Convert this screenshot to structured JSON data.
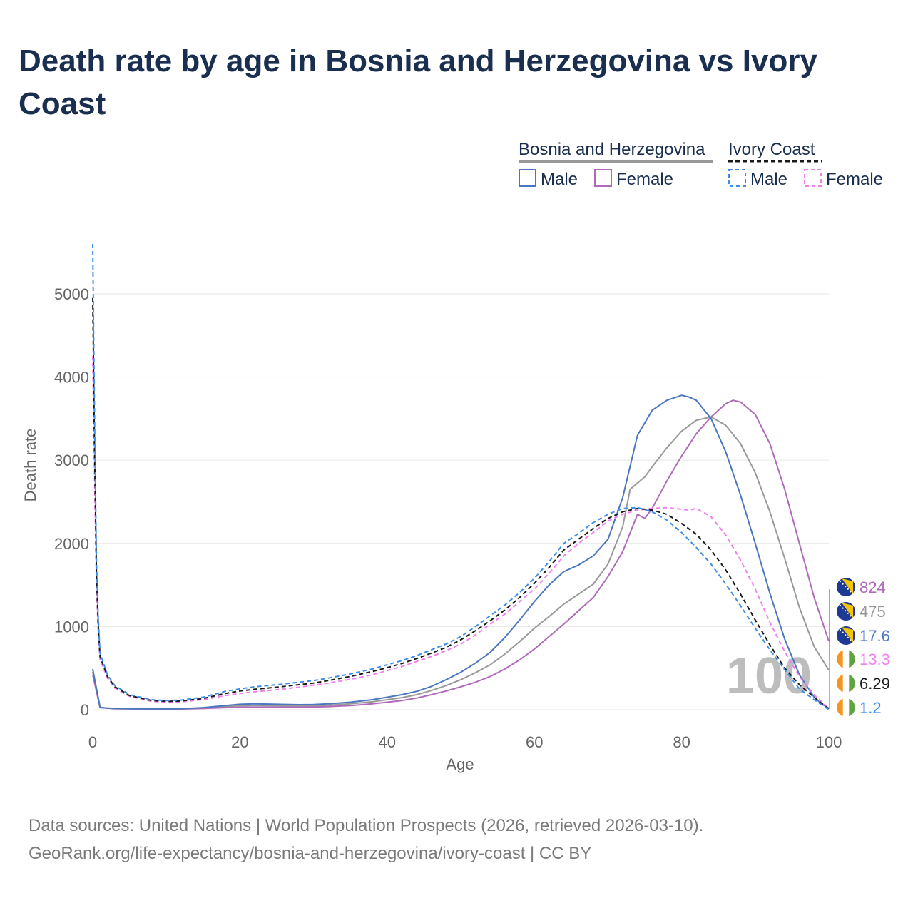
{
  "title": "Death rate by age in Bosnia and Herzegovina vs Ivory Coast",
  "legend": {
    "group1": "Bosnia and Herzegovina",
    "group2": "Ivory Coast",
    "male": "Male",
    "female": "Female"
  },
  "year_watermark": "100",
  "footer": {
    "line1": "Data sources: United Nations | World Population Prospects (2026, retrieved 2026-03-10).",
    "line2": "GeoRank.org/life-expectancy/bosnia-and-herzegovina/ivory-coast | CC BY"
  },
  "colors": {
    "bih_male": "#4a77bf",
    "bih_female": "#b06aba",
    "bih_total": "#999999",
    "ci_male": "#3d8eeb",
    "ci_female": "#f27ff0",
    "ci_total": "#1a1a1a"
  },
  "chart_data": {
    "type": "line",
    "xlabel": "Age",
    "ylabel": "Death rate",
    "xlim": [
      0,
      100
    ],
    "ylim": [
      0,
      5600
    ],
    "xticks": [
      0,
      20,
      40,
      60,
      80,
      100
    ],
    "yticks": [
      0,
      1000,
      2000,
      3000,
      4000,
      5000
    ],
    "series": [
      {
        "id": "bih_male",
        "name": "Bosnia and Herzegovina Male",
        "dash": false,
        "end_value": "17.6",
        "x": [
          0,
          1,
          2,
          3,
          5,
          8,
          10,
          12,
          15,
          18,
          20,
          22,
          25,
          28,
          30,
          32,
          35,
          38,
          40,
          42,
          44,
          46,
          48,
          50,
          52,
          54,
          56,
          58,
          60,
          62,
          64,
          66,
          68,
          70,
          72,
          74,
          76,
          78,
          80,
          81,
          82,
          84,
          86,
          88,
          90,
          92,
          94,
          96,
          98,
          99,
          100
        ],
        "y": [
          490,
          28,
          20,
          15,
          12,
          10,
          10,
          12,
          25,
          50,
          65,
          70,
          65,
          60,
          62,
          70,
          90,
          120,
          150,
          180,
          220,
          280,
          360,
          450,
          560,
          690,
          870,
          1080,
          1300,
          1500,
          1660,
          1740,
          1850,
          2050,
          2550,
          3300,
          3600,
          3720,
          3780,
          3760,
          3720,
          3500,
          3100,
          2580,
          2000,
          1400,
          850,
          420,
          150,
          70,
          17.6
        ]
      },
      {
        "id": "bih_female",
        "name": "Bosnia and Herzegovina Female",
        "dash": false,
        "end_value": "824",
        "x": [
          0,
          1,
          2,
          3,
          5,
          8,
          10,
          12,
          15,
          18,
          20,
          22,
          25,
          28,
          30,
          32,
          35,
          38,
          40,
          42,
          44,
          46,
          48,
          50,
          52,
          54,
          56,
          58,
          60,
          62,
          64,
          66,
          68,
          70,
          72,
          74,
          75,
          76,
          78,
          80,
          82,
          84,
          86,
          87,
          88,
          90,
          92,
          94,
          96,
          98,
          100
        ],
        "y": [
          420,
          25,
          18,
          12,
          10,
          8,
          8,
          9,
          15,
          25,
          30,
          30,
          30,
          30,
          32,
          38,
          50,
          70,
          90,
          110,
          140,
          180,
          225,
          275,
          330,
          400,
          490,
          600,
          730,
          880,
          1030,
          1190,
          1350,
          1600,
          1900,
          2350,
          2300,
          2420,
          2750,
          3050,
          3320,
          3520,
          3680,
          3720,
          3700,
          3550,
          3200,
          2650,
          2000,
          1350,
          824
        ]
      },
      {
        "id": "bih_total",
        "name": "Bosnia and Herzegovina Total",
        "dash": false,
        "end_value": "475",
        "x": [
          0,
          1,
          2,
          3,
          5,
          8,
          10,
          12,
          15,
          18,
          20,
          22,
          25,
          28,
          30,
          32,
          35,
          38,
          40,
          42,
          44,
          46,
          48,
          50,
          52,
          54,
          56,
          58,
          60,
          62,
          64,
          66,
          68,
          70,
          72,
          73,
          75,
          76,
          78,
          80,
          82,
          84,
          86,
          88,
          90,
          92,
          94,
          96,
          98,
          100
        ],
        "y": [
          455,
          27,
          19,
          13,
          11,
          9,
          9,
          10,
          20,
          38,
          48,
          50,
          48,
          45,
          47,
          54,
          70,
          95,
          120,
          145,
          180,
          230,
          290,
          360,
          445,
          540,
          670,
          820,
          980,
          1120,
          1270,
          1390,
          1510,
          1750,
          2200,
          2650,
          2800,
          2920,
          3150,
          3350,
          3480,
          3520,
          3420,
          3200,
          2850,
          2380,
          1820,
          1230,
          760,
          475
        ]
      },
      {
        "id": "ci_male",
        "name": "Ivory Coast Male",
        "dash": true,
        "end_value": "1.2",
        "x": [
          0,
          0.25,
          0.5,
          0.75,
          1,
          2,
          3,
          5,
          8,
          10,
          12,
          15,
          18,
          20,
          22,
          25,
          28,
          30,
          32,
          35,
          38,
          40,
          42,
          44,
          46,
          48,
          50,
          52,
          54,
          56,
          58,
          60,
          62,
          64,
          66,
          68,
          70,
          72,
          74,
          76,
          78,
          80,
          82,
          84,
          86,
          88,
          90,
          92,
          94,
          96,
          98,
          100
        ],
        "y": [
          5600,
          3500,
          1800,
          1100,
          680,
          420,
          290,
          180,
          120,
          110,
          115,
          150,
          220,
          250,
          275,
          300,
          330,
          350,
          380,
          430,
          490,
          540,
          590,
          650,
          720,
          790,
          880,
          1000,
          1130,
          1260,
          1410,
          1580,
          1780,
          2000,
          2120,
          2250,
          2350,
          2420,
          2430,
          2380,
          2280,
          2130,
          1950,
          1750,
          1510,
          1250,
          980,
          720,
          480,
          250,
          120,
          1.2
        ]
      },
      {
        "id": "ci_female",
        "name": "Ivory Coast Female",
        "dash": true,
        "end_value": "13.3",
        "x": [
          0,
          0.25,
          0.5,
          0.75,
          1,
          2,
          3,
          5,
          8,
          10,
          12,
          15,
          18,
          20,
          22,
          25,
          28,
          30,
          32,
          35,
          38,
          40,
          42,
          44,
          46,
          48,
          50,
          52,
          54,
          56,
          58,
          60,
          62,
          64,
          66,
          68,
          70,
          72,
          74,
          76,
          78,
          80,
          81,
          82,
          84,
          86,
          88,
          90,
          92,
          94,
          96,
          98,
          100
        ],
        "y": [
          4250,
          2800,
          1500,
          950,
          600,
          380,
          260,
          160,
          100,
          90,
          95,
          120,
          170,
          195,
          215,
          240,
          270,
          295,
          320,
          365,
          420,
          470,
          520,
          580,
          640,
          710,
          790,
          900,
          1030,
          1150,
          1300,
          1450,
          1640,
          1850,
          2000,
          2130,
          2270,
          2350,
          2400,
          2420,
          2430,
          2410,
          2400,
          2420,
          2320,
          2100,
          1800,
          1450,
          1050,
          700,
          400,
          180,
          13.3
        ]
      },
      {
        "id": "ci_total",
        "name": "Ivory Coast Total",
        "dash": true,
        "end_value": "6.29",
        "x": [
          0,
          0.25,
          0.5,
          0.75,
          1,
          2,
          3,
          5,
          8,
          10,
          12,
          15,
          18,
          20,
          22,
          25,
          28,
          30,
          32,
          35,
          38,
          40,
          42,
          44,
          46,
          48,
          50,
          52,
          54,
          56,
          58,
          60,
          62,
          64,
          66,
          68,
          70,
          72,
          74,
          76,
          78,
          80,
          82,
          84,
          86,
          88,
          90,
          92,
          94,
          96,
          98,
          100
        ],
        "y": [
          4950,
          3100,
          1650,
          1020,
          640,
          400,
          275,
          170,
          110,
          100,
          105,
          135,
          195,
          225,
          245,
          270,
          300,
          320,
          350,
          400,
          460,
          505,
          555,
          615,
          680,
          750,
          840,
          950,
          1070,
          1200,
          1350,
          1520,
          1710,
          1920,
          2050,
          2180,
          2300,
          2380,
          2420,
          2400,
          2350,
          2240,
          2110,
          1920,
          1680,
          1390,
          1080,
          780,
          500,
          300,
          150,
          6.29
        ]
      }
    ]
  }
}
